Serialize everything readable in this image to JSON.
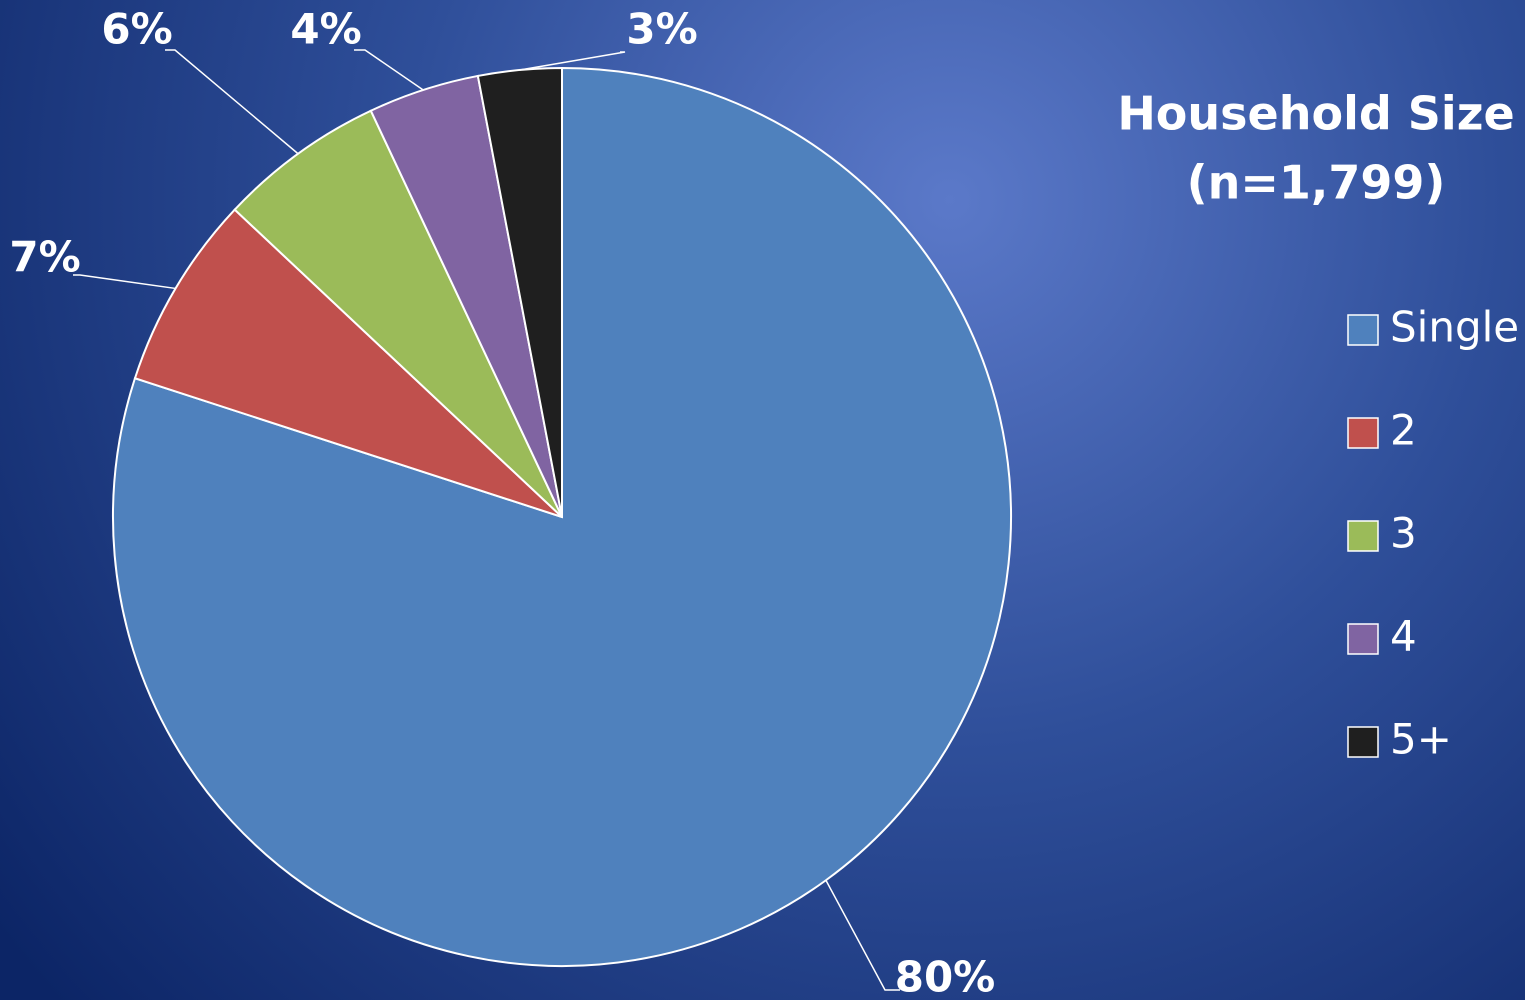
{
  "chart_data": {
    "type": "pie",
    "title": "Household Size",
    "subtitle": "(n=1,799)",
    "categories": [
      "Single",
      "2",
      "3",
      "4",
      "5+"
    ],
    "values": [
      80,
      7,
      6,
      4,
      3
    ],
    "value_labels": [
      "80%",
      "7%",
      "6%",
      "4%",
      "3%"
    ],
    "colors": [
      "#4f81bd",
      "#c0504d",
      "#9bbb59",
      "#8064a2",
      "#1f1f1f"
    ],
    "legend": "right"
  }
}
